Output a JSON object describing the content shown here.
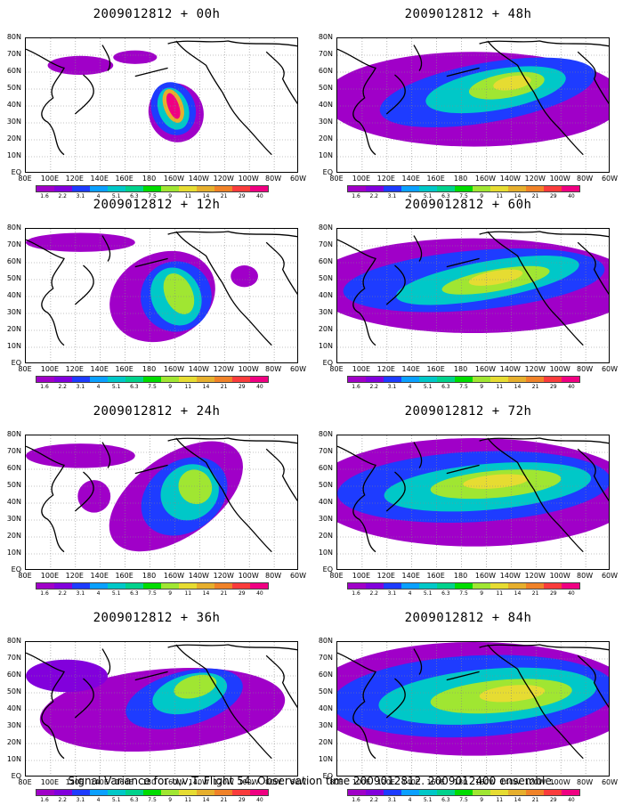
{
  "caption": "Signal Variance for u,v,T. Flight 54. Observation time 2009012812. 2009012400 ensemble.",
  "colorbar": {
    "labels": [
      "1.6",
      "2.2",
      "3.1",
      "4",
      "5.1",
      "6.3",
      "7.5",
      "9",
      "11",
      "14",
      "21",
      "29",
      "40"
    ],
    "colors": [
      "#a000c8",
      "#8200dc",
      "#1e3cff",
      "#0aa0ff",
      "#00c8c8",
      "#00d28c",
      "#00dc00",
      "#a0e632",
      "#e6dc32",
      "#e6af2d",
      "#f08228",
      "#fa3c3c",
      "#f00082"
    ]
  },
  "axes": {
    "lat_labels": [
      "80N",
      "70N",
      "60N",
      "50N",
      "40N",
      "30N",
      "20N",
      "10N",
      "EQ"
    ],
    "lon_labels": [
      "80E",
      "100E",
      "120E",
      "140E",
      "160E",
      "180",
      "160W",
      "140W",
      "120W",
      "100W",
      "80W",
      "60W"
    ]
  },
  "panels": [
    {
      "title": "2009012812 + 00h",
      "lead_hours": 0
    },
    {
      "title": "2009012812 + 48h",
      "lead_hours": 48
    },
    {
      "title": "2009012812 + 12h",
      "lead_hours": 12
    },
    {
      "title": "2009012812 + 60h",
      "lead_hours": 60
    },
    {
      "title": "2009012812 + 24h",
      "lead_hours": 24
    },
    {
      "title": "2009012812 + 72h",
      "lead_hours": 72
    },
    {
      "title": "2009012812 + 36h",
      "lead_hours": 36
    },
    {
      "title": "2009012812 + 84h",
      "lead_hours": 84
    }
  ]
}
